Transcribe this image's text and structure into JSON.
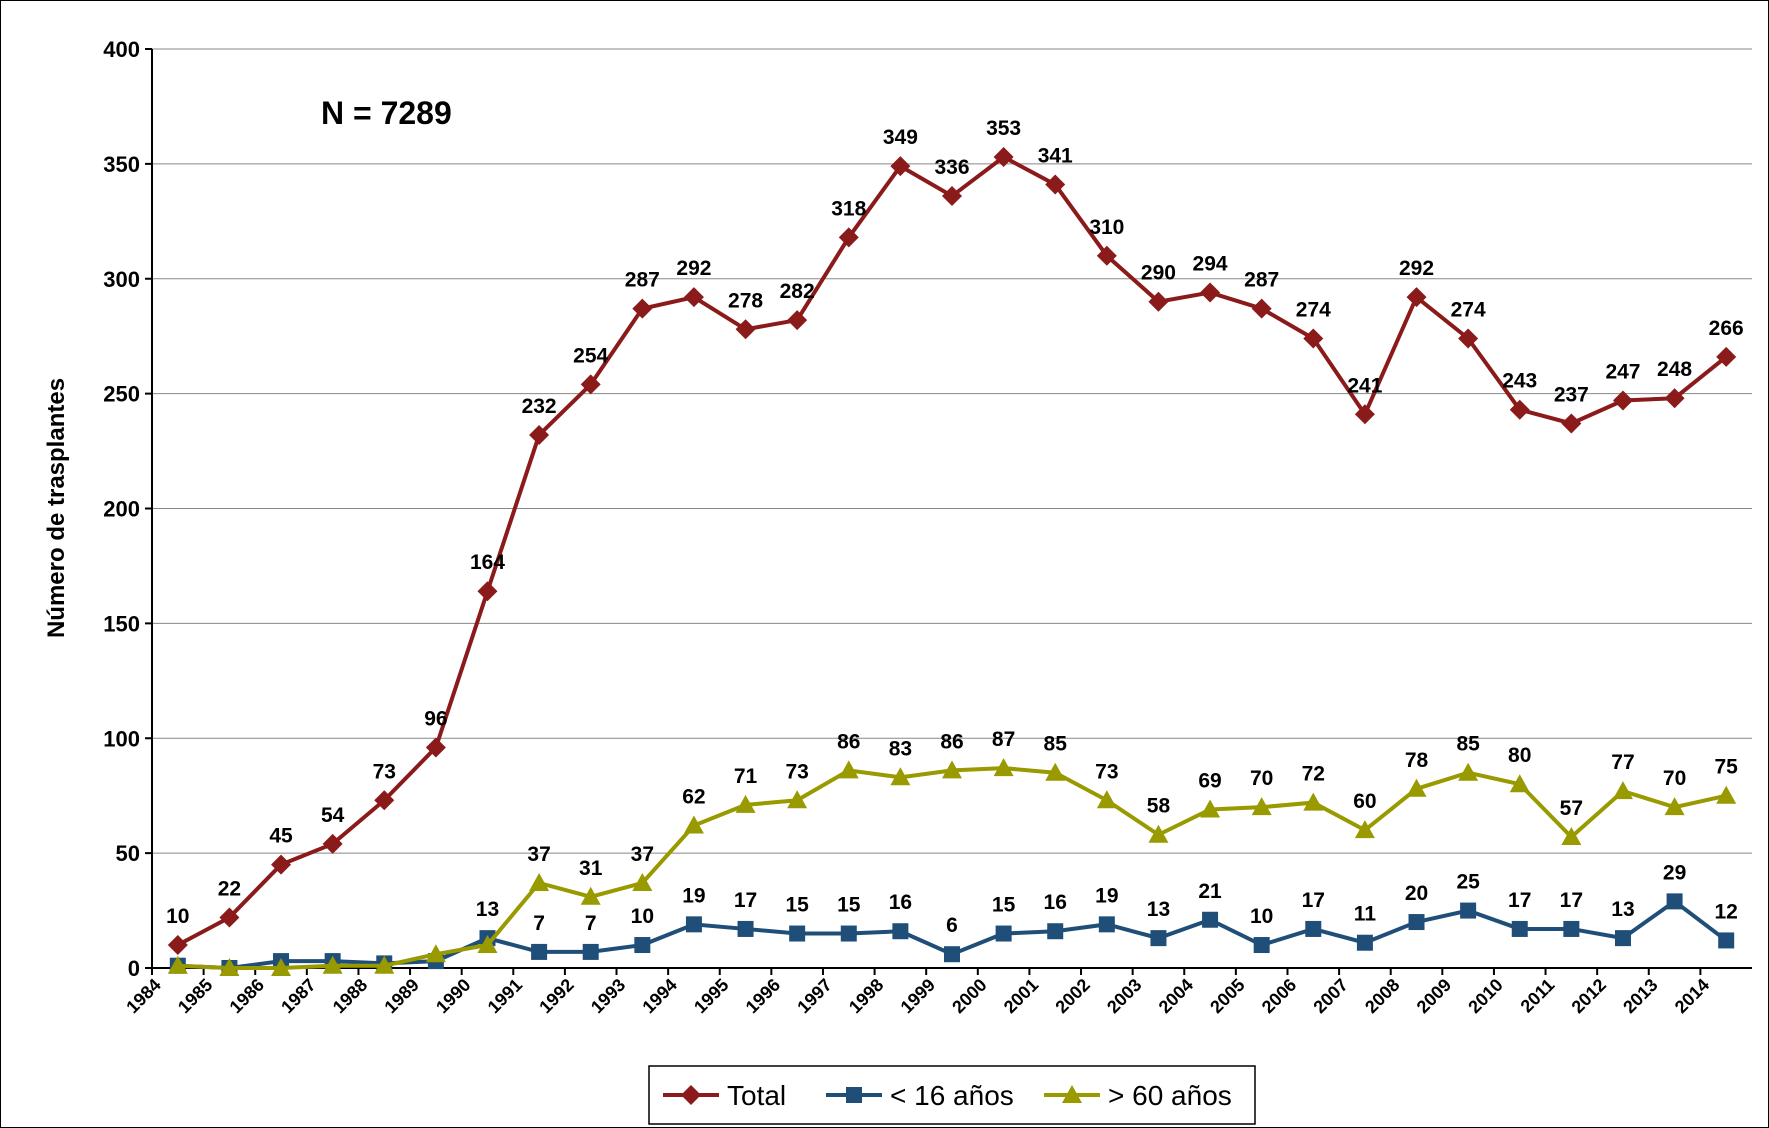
{
  "chart_data": {
    "type": "line",
    "annotation": "N = 7289",
    "ylabel": "Número de trasplantes",
    "categories": [
      "1984",
      "1985",
      "1986",
      "1987",
      "1988",
      "1989",
      "1990",
      "1991",
      "1992",
      "1993",
      "1994",
      "1995",
      "1996",
      "1997",
      "1998",
      "1999",
      "2000",
      "2001",
      "2002",
      "2003",
      "2004",
      "2005",
      "2006",
      "2007",
      "2008",
      "2009",
      "2010",
      "2011",
      "2012",
      "2013",
      "2014"
    ],
    "series": [
      {
        "name": "Total",
        "color": "#8B1A1A",
        "marker": "diamond",
        "values": [
          10,
          22,
          45,
          54,
          73,
          96,
          164,
          232,
          254,
          287,
          292,
          278,
          282,
          318,
          349,
          336,
          353,
          341,
          310,
          290,
          294,
          287,
          274,
          241,
          292,
          274,
          243,
          237,
          247,
          248,
          266
        ],
        "value_labels": [
          "10",
          "22",
          "45",
          "54",
          "73",
          "96",
          "164",
          "232",
          "254",
          "287",
          "292",
          "278",
          "282",
          "318",
          "349",
          "336",
          "353",
          "341",
          "310",
          "290",
          "294",
          "287",
          "274",
          "241",
          "292",
          "274",
          "243",
          "237",
          "247",
          "248",
          "266"
        ]
      },
      {
        "name": "< 16 años",
        "color": "#1F4E79",
        "marker": "square",
        "values": [
          1,
          0,
          3,
          3,
          2,
          3,
          13,
          7,
          7,
          10,
          19,
          17,
          15,
          15,
          16,
          6,
          15,
          16,
          19,
          13,
          21,
          10,
          17,
          11,
          20,
          25,
          17,
          17,
          13,
          29,
          12
        ],
        "value_labels": [
          null,
          null,
          null,
          null,
          null,
          null,
          "13",
          "7",
          "7",
          "10",
          "19",
          "17",
          "15",
          "15",
          "16",
          "6",
          "15",
          "16",
          "19",
          "13",
          "21",
          "10",
          "17",
          "11",
          "20",
          "25",
          "17",
          "17",
          "13",
          "29",
          "12"
        ]
      },
      {
        "name": "> 60 años",
        "color": "#999900",
        "marker": "triangle",
        "values": [
          1,
          0,
          0,
          1,
          1,
          6,
          10,
          37,
          31,
          37,
          62,
          71,
          73,
          86,
          83,
          86,
          87,
          85,
          73,
          58,
          69,
          70,
          72,
          60,
          78,
          85,
          80,
          57,
          77,
          70,
          75
        ],
        "value_labels": [
          null,
          null,
          null,
          null,
          null,
          null,
          null,
          "37",
          "31",
          "37",
          "62",
          "71",
          "73",
          "86",
          "83",
          "86",
          "87",
          "85",
          "73",
          "58",
          "69",
          "70",
          "72",
          "60",
          "78",
          "85",
          "80",
          "57",
          "77",
          "70",
          "75"
        ]
      }
    ],
    "ylim": [
      0,
      400
    ],
    "yticks": [
      0,
      50,
      100,
      150,
      200,
      250,
      300,
      350,
      400
    ],
    "grid": true
  }
}
